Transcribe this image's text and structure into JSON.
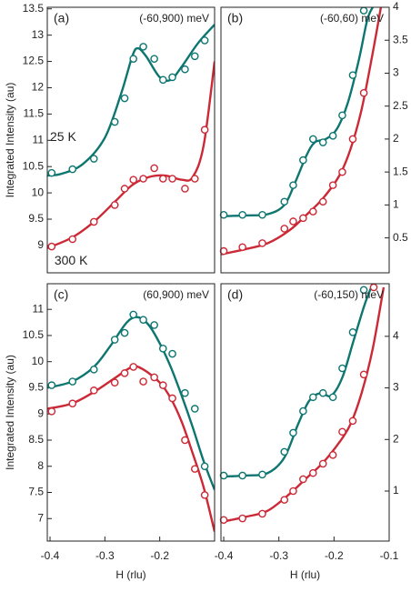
{
  "chart_data": [
    {
      "type": "scatter",
      "panel_label": "(a)",
      "subtitle": "(-60,900) meV",
      "ylabel": "Integrated Intensity (au)",
      "xlim": [
        -0.405,
        -0.1
      ],
      "xticks": [],
      "ylim": [
        8.48,
        13.53
      ],
      "yticks": [
        9,
        9.5,
        10,
        10.5,
        11,
        11.5,
        12,
        12.5,
        13,
        13.5
      ],
      "y_axis_side": "left",
      "annotations": [
        {
          "text": "25 K",
          "color": "#0e7670",
          "x": -0.4,
          "y": 11.05
        },
        {
          "text": "300 K",
          "color": "#cc2936",
          "x": -0.392,
          "y": 8.7
        }
      ],
      "series": [
        {
          "style": "markers",
          "color": "#0e7670",
          "x": [
            -0.397,
            -0.359,
            -0.32,
            -0.282,
            -0.264,
            -0.248,
            -0.23,
            -0.21,
            -0.194,
            -0.177,
            -0.154,
            -0.136,
            -0.118
          ],
          "values": [
            10.38,
            10.45,
            10.65,
            11.35,
            11.8,
            12.55,
            12.78,
            12.55,
            12.15,
            12.2,
            12.35,
            12.6,
            12.9
          ]
        },
        {
          "style": "markers",
          "color": "#cc2936",
          "x": [
            -0.397,
            -0.359,
            -0.32,
            -0.282,
            -0.264,
            -0.248,
            -0.23,
            -0.21,
            -0.194,
            -0.177,
            -0.154,
            -0.136,
            -0.118
          ],
          "values": [
            8.98,
            9.12,
            9.45,
            9.77,
            10.08,
            10.25,
            10.27,
            10.47,
            10.27,
            10.27,
            10.08,
            10.27,
            11.2
          ]
        },
        {
          "style": "line",
          "color": "#0e7670",
          "x": [
            -0.405,
            -0.38,
            -0.34,
            -0.3,
            -0.27,
            -0.25,
            -0.24,
            -0.225,
            -0.2,
            -0.18,
            -0.16,
            -0.13,
            -0.1
          ],
          "values": [
            10.33,
            10.36,
            10.55,
            11.05,
            11.9,
            12.6,
            12.75,
            12.6,
            12.2,
            12.15,
            12.4,
            12.85,
            13.2
          ]
        },
        {
          "style": "line",
          "color": "#cc2936",
          "x": [
            -0.405,
            -0.36,
            -0.32,
            -0.28,
            -0.25,
            -0.22,
            -0.19,
            -0.16,
            -0.14,
            -0.12,
            -0.1
          ],
          "values": [
            8.95,
            9.15,
            9.45,
            9.85,
            10.15,
            10.3,
            10.33,
            10.25,
            10.3,
            10.9,
            12.5
          ]
        }
      ]
    },
    {
      "type": "scatter",
      "panel_label": "(b)",
      "subtitle": "(-60,60) meV",
      "xlim": [
        -0.405,
        -0.1
      ],
      "xticks": [],
      "ylim": [
        -0.03,
        4.0
      ],
      "yticks": [
        0.5,
        1,
        1.5,
        2,
        2.5,
        3,
        3.5,
        4
      ],
      "y_axis_side": "right",
      "series": [
        {
          "style": "markers",
          "color": "#0e7670",
          "x": [
            -0.4,
            -0.366,
            -0.33,
            -0.29,
            -0.274,
            -0.256,
            -0.238,
            -0.22,
            -0.202,
            -0.185,
            -0.166,
            -0.146
          ],
          "values": [
            0.85,
            0.85,
            0.85,
            1.05,
            1.3,
            1.68,
            2.0,
            1.95,
            2.05,
            2.36,
            2.97,
            3.95
          ]
        },
        {
          "style": "markers",
          "color": "#cc2936",
          "x": [
            -0.4,
            -0.366,
            -0.33,
            -0.29,
            -0.274,
            -0.256,
            -0.238,
            -0.22,
            -0.202,
            -0.185,
            -0.166,
            -0.146
          ],
          "values": [
            0.3,
            0.36,
            0.42,
            0.64,
            0.75,
            0.8,
            0.9,
            1.05,
            1.3,
            1.5,
            2.0,
            2.7
          ]
        },
        {
          "style": "line",
          "color": "#0e7670",
          "x": [
            -0.405,
            -0.36,
            -0.32,
            -0.29,
            -0.27,
            -0.25,
            -0.235,
            -0.215,
            -0.195,
            -0.175,
            -0.155,
            -0.14,
            -0.13
          ],
          "values": [
            0.83,
            0.84,
            0.86,
            1.0,
            1.35,
            1.75,
            1.95,
            2.0,
            2.15,
            2.55,
            3.2,
            3.8,
            4.0
          ]
        },
        {
          "style": "line",
          "color": "#cc2936",
          "x": [
            -0.405,
            -0.36,
            -0.32,
            -0.28,
            -0.25,
            -0.22,
            -0.19,
            -0.17,
            -0.15,
            -0.13,
            -0.115
          ],
          "values": [
            0.25,
            0.33,
            0.42,
            0.62,
            0.85,
            1.1,
            1.45,
            1.85,
            2.45,
            3.3,
            4.0
          ]
        }
      ]
    },
    {
      "type": "scatter",
      "panel_label": "(c)",
      "subtitle": "(60,900) meV",
      "ylabel": "Integrated Intensity (au)",
      "xlabel": "H (rlu)",
      "xlim": [
        -0.405,
        -0.1
      ],
      "xticks": [
        -0.4,
        -0.3,
        -0.2
      ],
      "ylim": [
        6.57,
        11.49
      ],
      "yticks": [
        7,
        7.5,
        8,
        8.5,
        9,
        9.5,
        10,
        10.5,
        11
      ],
      "y_axis_side": "left",
      "series": [
        {
          "style": "markers",
          "color": "#0e7670",
          "x": [
            -0.397,
            -0.359,
            -0.32,
            -0.282,
            -0.264,
            -0.248,
            -0.23,
            -0.21,
            -0.194,
            -0.177,
            -0.154,
            -0.136,
            -0.118
          ],
          "values": [
            9.55,
            9.62,
            9.85,
            10.42,
            10.55,
            10.9,
            10.8,
            10.7,
            10.25,
            10.15,
            9.4,
            9.1,
            8.0
          ]
        },
        {
          "style": "markers",
          "color": "#cc2936",
          "x": [
            -0.397,
            -0.359,
            -0.32,
            -0.282,
            -0.264,
            -0.248,
            -0.23,
            -0.21,
            -0.194,
            -0.177,
            -0.154,
            -0.136,
            -0.118
          ],
          "values": [
            9.05,
            9.2,
            9.45,
            9.6,
            9.78,
            9.9,
            9.62,
            9.7,
            9.55,
            9.3,
            8.5,
            7.95,
            7.45
          ]
        },
        {
          "style": "line",
          "color": "#0e7670",
          "x": [
            -0.405,
            -0.36,
            -0.32,
            -0.29,
            -0.26,
            -0.24,
            -0.22,
            -0.2,
            -0.18,
            -0.16,
            -0.14,
            -0.12,
            -0.1
          ],
          "values": [
            9.5,
            9.62,
            9.9,
            10.3,
            10.75,
            10.85,
            10.7,
            10.35,
            9.9,
            9.35,
            8.75,
            8.1,
            7.55
          ]
        },
        {
          "style": "line",
          "color": "#cc2936",
          "x": [
            -0.405,
            -0.36,
            -0.32,
            -0.28,
            -0.25,
            -0.23,
            -0.2,
            -0.18,
            -0.16,
            -0.14,
            -0.12,
            -0.1
          ],
          "values": [
            9.1,
            9.2,
            9.42,
            9.7,
            9.9,
            9.85,
            9.6,
            9.3,
            8.85,
            8.25,
            7.6,
            6.75
          ]
        }
      ]
    },
    {
      "type": "scatter",
      "panel_label": "(d)",
      "subtitle": "(-60,150) meV",
      "xlabel": "H (rlu)",
      "xlim": [
        -0.405,
        -0.1
      ],
      "xticks": [
        -0.4,
        -0.3,
        -0.2,
        -0.1
      ],
      "ylim": [
        0.03,
        5.02
      ],
      "yticks": [
        1,
        2,
        3,
        4
      ],
      "y_axis_side": "right",
      "series": [
        {
          "style": "markers",
          "color": "#0e7670",
          "x": [
            -0.4,
            -0.366,
            -0.33,
            -0.29,
            -0.274,
            -0.256,
            -0.238,
            -0.22,
            -0.202,
            -0.185,
            -0.166,
            -0.146
          ],
          "values": [
            1.3,
            1.3,
            1.32,
            1.76,
            2.13,
            2.55,
            2.82,
            2.9,
            2.82,
            3.38,
            4.08,
            4.9
          ]
        },
        {
          "style": "markers",
          "color": "#cc2936",
          "x": [
            -0.4,
            -0.366,
            -0.33,
            -0.29,
            -0.274,
            -0.256,
            -0.238,
            -0.22,
            -0.202,
            -0.185,
            -0.166,
            -0.146,
            -0.128
          ],
          "values": [
            0.44,
            0.47,
            0.56,
            0.83,
            1.0,
            1.23,
            1.35,
            1.53,
            1.7,
            2.15,
            2.36,
            3.26,
            4.95
          ]
        },
        {
          "style": "line",
          "color": "#0e7670",
          "x": [
            -0.405,
            -0.36,
            -0.32,
            -0.29,
            -0.265,
            -0.245,
            -0.225,
            -0.205,
            -0.185,
            -0.165,
            -0.145,
            -0.13
          ],
          "values": [
            1.28,
            1.3,
            1.35,
            1.65,
            2.3,
            2.75,
            2.9,
            2.85,
            3.2,
            3.9,
            4.6,
            5.02
          ]
        },
        {
          "style": "line",
          "color": "#cc2936",
          "x": [
            -0.405,
            -0.36,
            -0.32,
            -0.28,
            -0.25,
            -0.22,
            -0.19,
            -0.17,
            -0.15,
            -0.13,
            -0.11
          ],
          "values": [
            0.4,
            0.5,
            0.62,
            0.95,
            1.25,
            1.55,
            1.95,
            2.3,
            2.9,
            3.75,
            4.95
          ]
        }
      ]
    }
  ]
}
